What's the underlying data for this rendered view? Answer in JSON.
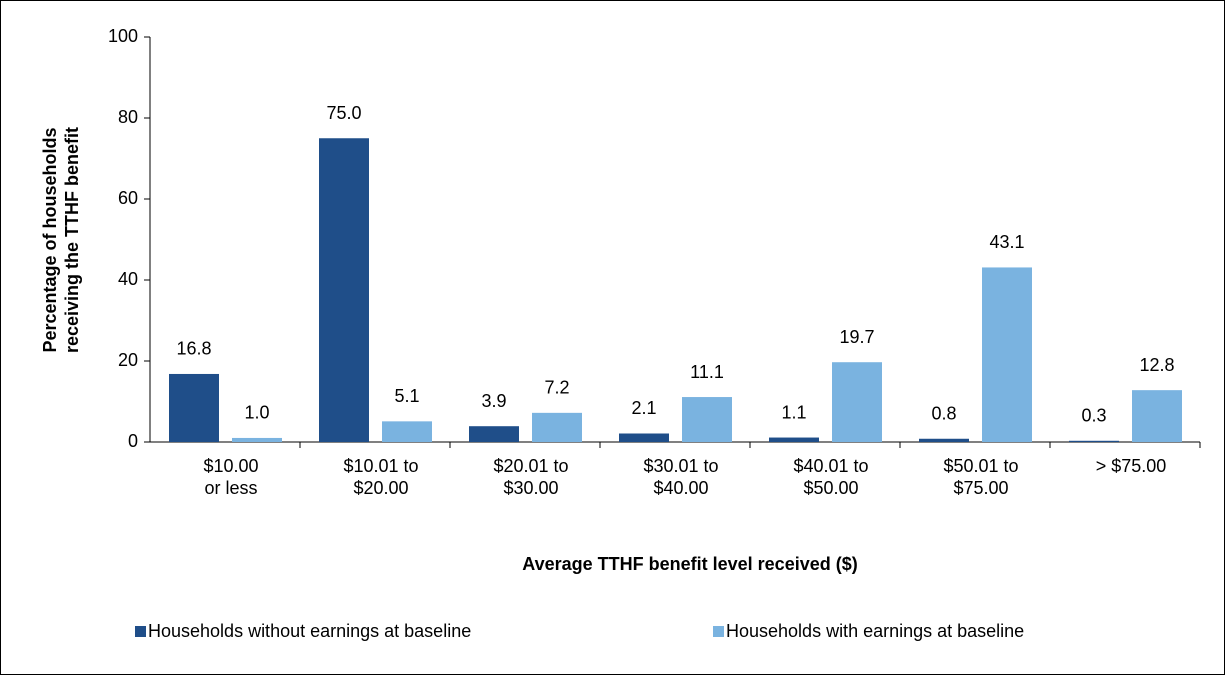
{
  "chart_data": {
    "type": "bar",
    "y_label": "Percentage of households\nreceiving the TTHF benefit",
    "x_label": "Average TTHF benefit level received ($)",
    "categories": [
      "$10.00\nor less",
      "$10.01 to\n$20.00",
      "$20.01 to\n$30.00",
      "$30.01 to\n$40.00",
      "$40.01 to\n$50.00",
      "$50.01 to\n$75.00",
      "> $75.00"
    ],
    "series": [
      {
        "name": "Households without earnings at baseline",
        "color": "#1f4e89",
        "values": [
          16.8,
          75,
          3.9,
          2.1,
          1.1,
          0.8,
          0.3
        ],
        "value_labels": [
          "16.8",
          "75.0",
          "3.9",
          "2.1",
          "1.1",
          "0.8",
          "0.3"
        ]
      },
      {
        "name": "Households with earnings at baseline",
        "color": "#7ab3e0",
        "values": [
          1,
          5.1,
          7.2,
          11.1,
          19.7,
          43.1,
          12.8
        ],
        "value_labels": [
          "1.0",
          "5.1",
          "7.2",
          "11.1",
          "19.7",
          "43.1",
          "12.8"
        ]
      }
    ],
    "ylim": [
      0,
      100
    ],
    "yticks": [
      0,
      20,
      40,
      60,
      80,
      100
    ],
    "grid": false,
    "legend": "bottom"
  }
}
